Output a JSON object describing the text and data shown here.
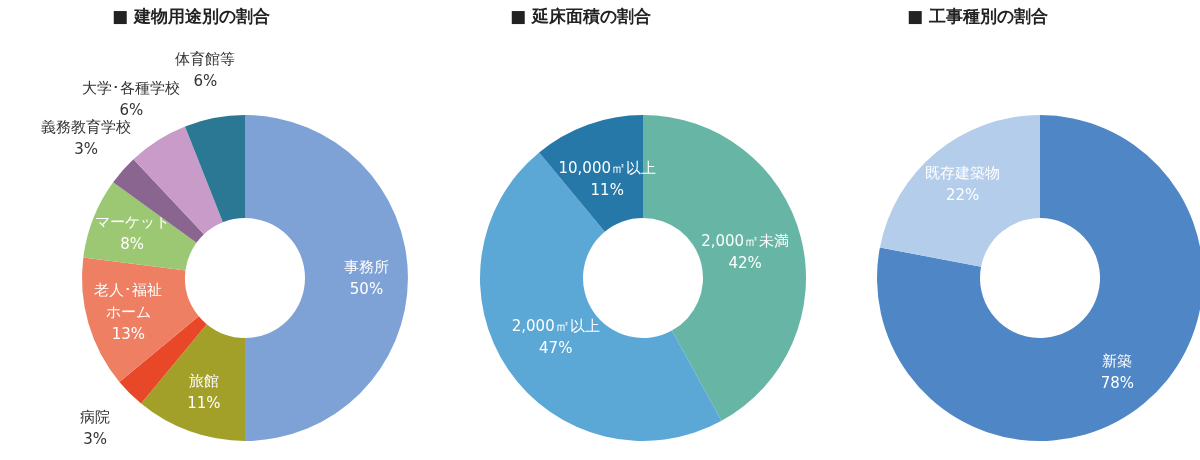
{
  "chart_data": [
    {
      "type": "donut",
      "title": "■ 建物用途別の割合",
      "data_labels": true,
      "categories": [
        "事務所",
        "旅館",
        "病院",
        "老人･福祉ホーム",
        "マーケット",
        "義務教育学校",
        "大学･各種学校",
        "体育館等"
      ],
      "values": [
        50,
        11,
        3,
        13,
        8,
        3,
        6,
        6
      ],
      "value_labels": [
        "50%",
        "11%",
        "3%",
        "13%",
        "8%",
        "3%",
        "6%",
        "6%"
      ],
      "colors": [
        "#7fa2d6",
        "#a3a02a",
        "#e84827",
        "#ef7f62",
        "#9cc873",
        "#8a6590",
        "#c99bc9",
        "#2a7893"
      ]
    },
    {
      "type": "donut",
      "title": "■ 延床面積の割合",
      "data_labels": true,
      "categories": [
        "2,000㎡未満",
        "2,000㎡以上",
        "10,000㎡以上"
      ],
      "values": [
        42,
        47,
        11
      ],
      "value_labels": [
        "42%",
        "47%",
        "11%"
      ],
      "colors": [
        "#67b5a5",
        "#5ba8d6",
        "#2678a8"
      ]
    },
    {
      "type": "donut",
      "title": "■ 工事種別の割合",
      "data_labels": true,
      "categories": [
        "新築",
        "既存建築物"
      ],
      "values": [
        78,
        22
      ],
      "value_labels": [
        "78%",
        "22%"
      ],
      "colors": [
        "#4f86c6",
        "#b4cdea"
      ]
    }
  ]
}
